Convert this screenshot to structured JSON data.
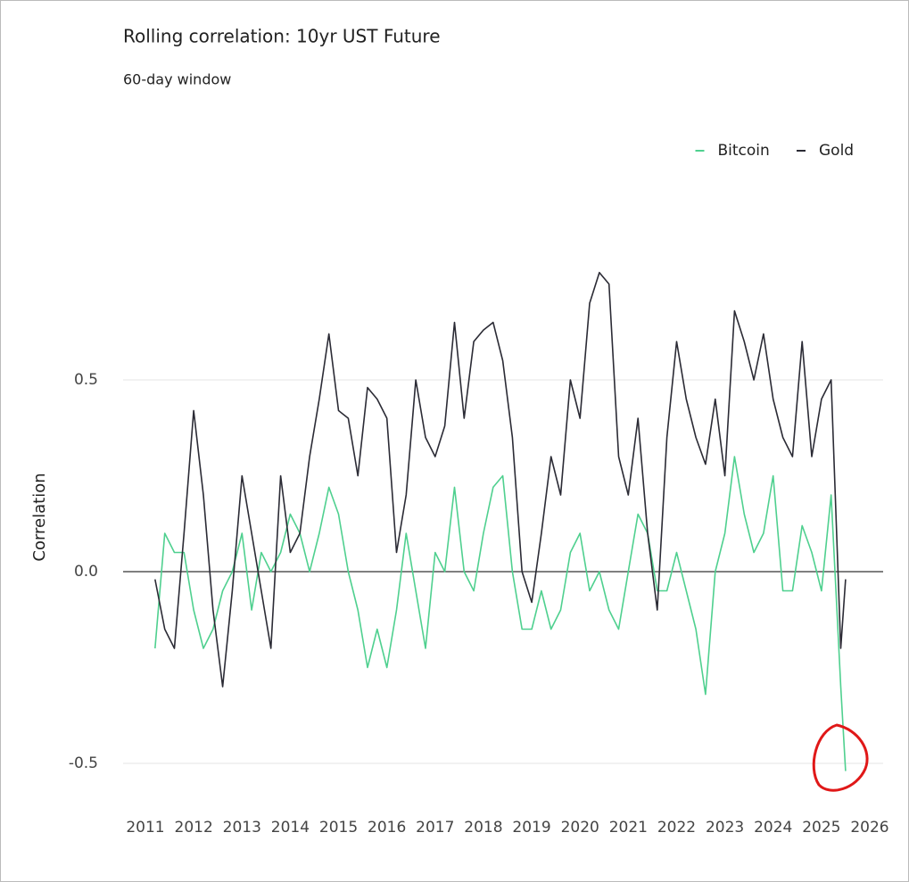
{
  "chart_data": {
    "type": "line",
    "title": "Rolling correlation: 10yr UST Future",
    "subtitle": "60-day window",
    "y_label": "Correlation",
    "x": [
      2011.2,
      2011.4,
      2011.6,
      2011.8,
      2012.0,
      2012.2,
      2012.4,
      2012.6,
      2012.8,
      2013.0,
      2013.2,
      2013.4,
      2013.6,
      2013.8,
      2014.0,
      2014.2,
      2014.4,
      2014.6,
      2014.8,
      2015.0,
      2015.2,
      2015.4,
      2015.6,
      2015.8,
      2016.0,
      2016.2,
      2016.4,
      2016.6,
      2016.8,
      2017.0,
      2017.2,
      2017.4,
      2017.6,
      2017.8,
      2018.0,
      2018.2,
      2018.4,
      2018.6,
      2018.8,
      2019.0,
      2019.2,
      2019.4,
      2019.6,
      2019.8,
      2020.0,
      2020.2,
      2020.4,
      2020.6,
      2020.8,
      2021.0,
      2021.2,
      2021.4,
      2021.6,
      2021.8,
      2022.0,
      2022.2,
      2022.4,
      2022.6,
      2022.8,
      2023.0,
      2023.2,
      2023.4,
      2023.6,
      2023.8,
      2024.0,
      2024.2,
      2024.4,
      2024.6,
      2024.8,
      2025.0,
      2025.2,
      2025.4,
      2025.5
    ],
    "series": [
      {
        "name": "Bitcoin",
        "color": "#4fd08f",
        "values": [
          -0.2,
          0.1,
          0.05,
          0.05,
          -0.1,
          -0.2,
          -0.15,
          -0.05,
          0.0,
          0.1,
          -0.1,
          0.05,
          0.0,
          0.05,
          0.15,
          0.1,
          0.0,
          0.1,
          0.22,
          0.15,
          0.0,
          -0.1,
          -0.25,
          -0.15,
          -0.25,
          -0.1,
          0.1,
          -0.05,
          -0.2,
          0.05,
          0.0,
          0.22,
          0.0,
          -0.05,
          0.1,
          0.22,
          0.25,
          0.0,
          -0.15,
          -0.15,
          -0.05,
          -0.15,
          -0.1,
          0.05,
          0.1,
          -0.05,
          0.0,
          -0.1,
          -0.15,
          0.0,
          0.15,
          0.1,
          -0.05,
          -0.05,
          0.05,
          -0.05,
          -0.15,
          -0.32,
          0.0,
          0.1,
          0.3,
          0.15,
          0.05,
          0.1,
          0.25,
          -0.05,
          -0.05,
          0.12,
          0.05,
          -0.05,
          0.2,
          -0.3,
          -0.52
        ]
      },
      {
        "name": "Gold",
        "color": "#2b2b35",
        "values": [
          -0.02,
          -0.15,
          -0.2,
          0.1,
          0.42,
          0.2,
          -0.1,
          -0.3,
          -0.05,
          0.25,
          0.1,
          -0.05,
          -0.2,
          0.25,
          0.05,
          0.1,
          0.3,
          0.45,
          0.62,
          0.42,
          0.4,
          0.25,
          0.48,
          0.45,
          0.4,
          0.05,
          0.2,
          0.5,
          0.35,
          0.3,
          0.38,
          0.65,
          0.4,
          0.6,
          0.63,
          0.65,
          0.55,
          0.35,
          0.0,
          -0.08,
          0.1,
          0.3,
          0.2,
          0.5,
          0.4,
          0.7,
          0.78,
          0.75,
          0.3,
          0.2,
          0.4,
          0.1,
          -0.1,
          0.35,
          0.6,
          0.45,
          0.35,
          0.28,
          0.45,
          0.25,
          0.68,
          0.6,
          0.5,
          0.62,
          0.45,
          0.35,
          0.3,
          0.6,
          0.3,
          0.45,
          0.5,
          -0.2,
          -0.02
        ]
      }
    ],
    "xlim": [
      2011,
      2026
    ],
    "xticks": [
      2011,
      2012,
      2013,
      2014,
      2015,
      2016,
      2017,
      2018,
      2019,
      2020,
      2021,
      2022,
      2023,
      2024,
      2025,
      2026
    ],
    "ylim": [
      -0.6,
      0.85
    ],
    "yticks": [
      -0.5,
      {
        "value": 0,
        "label": "0.0"
      },
      0.5
    ],
    "grid": true,
    "legend": "upper right"
  }
}
